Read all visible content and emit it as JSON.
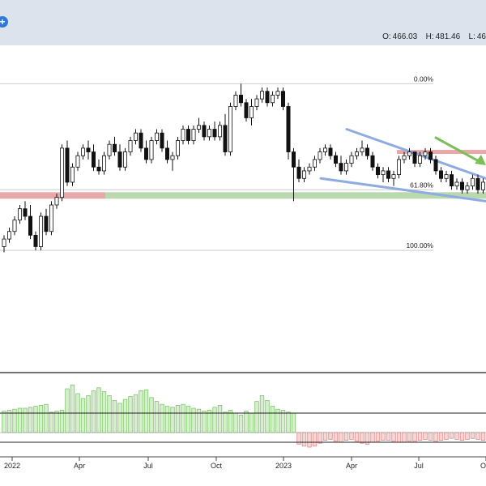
{
  "header": {
    "ohlc": [
      {
        "label": "O:",
        "value": "466.03"
      },
      {
        "label": "H:",
        "value": "481.46"
      },
      {
        "label": "L:",
        "value": "46"
      }
    ]
  },
  "colors": {
    "up": "#ffffff",
    "down": "#111111",
    "wick": "#111111",
    "fib_line": "#cccccc",
    "resistance": "#e9a8a8",
    "support": "#b9d8ae",
    "wedge": "#8eabe2",
    "arrow": "#7bbf5a",
    "hist_pos_fill": "#d6efcc",
    "hist_pos_stroke": "#7fc46b",
    "hist_neg_fill": "#f7d6d6",
    "hist_neg_stroke": "#e08c8c",
    "background": "#ffffff",
    "topbar": "#dde3ec"
  },
  "chart_data": {
    "type": "candlestick",
    "title": "",
    "ylim": [
      405,
      482
    ],
    "x_ticks": [
      "2022",
      "Apr",
      "Jul",
      "Oct",
      "2023",
      "Apr",
      "Jul",
      "O"
    ],
    "fib_levels": [
      {
        "label": "0.00%",
        "value": 474
      },
      {
        "label": "61.80%",
        "value": 446
      },
      {
        "label": "100.00%",
        "value": 430
      }
    ],
    "support_level": 444.5,
    "resistance_level": 456,
    "candles": [
      [
        431.0,
        434.0,
        429.5,
        433.0
      ],
      [
        433.0,
        436.0,
        432.0,
        435.0
      ],
      [
        435.0,
        439.0,
        434.0,
        438.0
      ],
      [
        438.0,
        442.0,
        437.0,
        441.0
      ],
      [
        441.0,
        443.0,
        438.0,
        439.0
      ],
      [
        439.0,
        442.0,
        433.0,
        434.0
      ],
      [
        434.0,
        435.0,
        430.0,
        431.0
      ],
      [
        431.0,
        440.0,
        430.0,
        439.0
      ],
      [
        439.0,
        441.0,
        434.0,
        435.0
      ],
      [
        435.0,
        443.0,
        434.0,
        442.0
      ],
      [
        442.0,
        445.0,
        441.0,
        444.0
      ],
      [
        444.0,
        458.0,
        443.0,
        457.0
      ],
      [
        457.0,
        459.0,
        447.0,
        448.0
      ],
      [
        448.0,
        453.0,
        447.0,
        452.0
      ],
      [
        452.0,
        456.0,
        451.0,
        455.0
      ],
      [
        455.0,
        458.0,
        454.0,
        457.0
      ],
      [
        457.0,
        459.0,
        454.0,
        456.0
      ],
      [
        456.0,
        458.0,
        451.0,
        452.0
      ],
      [
        452.0,
        454.0,
        450.0,
        451.0
      ],
      [
        451.0,
        456.0,
        450.0,
        455.0
      ],
      [
        455.0,
        459.0,
        454.0,
        458.0
      ],
      [
        458.0,
        460.0,
        455.0,
        456.0
      ],
      [
        456.0,
        458.0,
        451.0,
        452.0
      ],
      [
        452.0,
        457.0,
        451.0,
        456.0
      ],
      [
        456.0,
        460.0,
        455.0,
        459.0
      ],
      [
        459.0,
        462.0,
        458.0,
        461.0
      ],
      [
        461.0,
        462.0,
        456.0,
        457.0
      ],
      [
        457.0,
        459.0,
        453.0,
        454.0
      ],
      [
        454.0,
        460.0,
        453.0,
        459.0
      ],
      [
        459.0,
        462.0,
        458.0,
        461.0
      ],
      [
        461.0,
        462.0,
        456.0,
        457.0
      ],
      [
        457.0,
        459.0,
        453.0,
        454.0
      ],
      [
        454.0,
        456.0,
        451.0,
        455.0
      ],
      [
        455.0,
        460.0,
        454.0,
        459.0
      ],
      [
        459.0,
        463.0,
        458.0,
        462.0
      ],
      [
        462.0,
        463.0,
        458.0,
        459.0
      ],
      [
        459.0,
        463.0,
        458.0,
        462.0
      ],
      [
        462.0,
        465.0,
        461.0,
        463.0
      ],
      [
        463.0,
        464.0,
        459.0,
        460.0
      ],
      [
        460.0,
        463.0,
        459.0,
        462.0
      ],
      [
        462.0,
        464.0,
        459.0,
        460.0
      ],
      [
        460.0,
        464.0,
        459.0,
        463.0
      ],
      [
        463.0,
        466.0,
        455.0,
        456.0
      ],
      [
        456.0,
        469.0,
        455.0,
        468.0
      ],
      [
        468.0,
        472.0,
        467.0,
        471.0
      ],
      [
        471.0,
        474.0,
        468.0,
        469.0
      ],
      [
        469.0,
        470.0,
        464.0,
        465.0
      ],
      [
        465.0,
        470.0,
        463.0,
        468.0
      ],
      [
        468.0,
        471.0,
        467.0,
        470.0
      ],
      [
        470.0,
        473.0,
        469.0,
        472.0
      ],
      [
        472.0,
        473.0,
        468.0,
        469.0
      ],
      [
        469.0,
        472.0,
        468.0,
        471.0
      ],
      [
        471.0,
        473.0,
        470.0,
        472.0
      ],
      [
        472.0,
        473.0,
        467.0,
        468.0
      ],
      [
        468.0,
        469.0,
        454.0,
        456.0
      ],
      [
        456.0,
        457.0,
        443.0,
        452.0
      ],
      [
        452.0,
        454.0,
        448.0,
        449.0
      ],
      [
        449.0,
        452.0,
        448.0,
        451.0
      ],
      [
        451.0,
        453.0,
        450.0,
        452.0
      ],
      [
        452.0,
        455.0,
        451.0,
        454.0
      ],
      [
        454.0,
        457.0,
        453.0,
        456.0
      ],
      [
        456.0,
        458.0,
        455.0,
        457.0
      ],
      [
        457.0,
        458.0,
        454.0,
        455.0
      ],
      [
        455.0,
        456.0,
        452.0,
        453.0
      ],
      [
        453.0,
        455.0,
        450.0,
        451.0
      ],
      [
        451.0,
        454.0,
        450.0,
        453.0
      ],
      [
        453.0,
        456.0,
        452.0,
        455.0
      ],
      [
        455.0,
        457.0,
        454.0,
        456.0
      ],
      [
        456.0,
        459.0,
        455.0,
        457.0
      ],
      [
        457.0,
        458.0,
        454.0,
        455.0
      ],
      [
        455.0,
        456.0,
        451.0,
        452.0
      ],
      [
        452.0,
        453.0,
        449.0,
        450.0
      ],
      [
        450.0,
        452.0,
        448.0,
        451.0
      ],
      [
        451.0,
        452.0,
        448.0,
        449.0
      ],
      [
        449.0,
        451.0,
        447.0,
        450.0
      ],
      [
        450.0,
        455.0,
        449.0,
        454.0
      ],
      [
        454.0,
        456.0,
        453.0,
        455.0
      ],
      [
        455.0,
        457.0,
        454.0,
        456.0
      ],
      [
        456.0,
        456.0,
        452.0,
        453.0
      ],
      [
        453.0,
        456.0,
        452.0,
        455.0
      ],
      [
        455.0,
        457.0,
        454.0,
        456.0
      ],
      [
        456.0,
        457.0,
        453.0,
        454.0
      ],
      [
        454.0,
        455.0,
        450.0,
        451.0
      ],
      [
        451.0,
        452.0,
        448.0,
        449.0
      ],
      [
        449.0,
        451.0,
        448.0,
        450.0
      ],
      [
        450.0,
        451.0,
        446.0,
        447.0
      ],
      [
        447.0,
        449.0,
        446.0,
        448.0
      ],
      [
        448.0,
        449.0,
        445.0,
        446.0
      ],
      [
        446.0,
        448.0,
        445.0,
        447.0
      ],
      [
        447.0,
        450.0,
        446.0,
        449.0
      ],
      [
        449.0,
        450.0,
        445.0,
        446.0
      ],
      [
        446.0,
        449.0,
        445.0,
        448.0
      ]
    ],
    "histogram": [
      2.2,
      2.3,
      2.4,
      2.5,
      2.5,
      2.6,
      2.7,
      2.8,
      2.9,
      2.1,
      2.2,
      2.3,
      4.5,
      4.9,
      4.0,
      3.5,
      3.8,
      4.3,
      4.6,
      4.2,
      3.8,
      3.3,
      3.0,
      3.4,
      3.7,
      3.9,
      4.3,
      4.4,
      3.6,
      3.2,
      2.9,
      2.7,
      2.6,
      2.8,
      2.9,
      2.7,
      2.5,
      2.4,
      2.2,
      2.3,
      2.6,
      2.8,
      2.1,
      2.3,
      2.0,
      1.8,
      2.2,
      2.0,
      3.2,
      3.8,
      3.3,
      2.7,
      2.4,
      2.3,
      2.1,
      2.0,
      -1.2,
      -1.4,
      -1.5,
      -1.4,
      -1.1,
      -0.8,
      -0.7,
      -0.9,
      -1.0,
      -0.8,
      -0.7,
      -0.9,
      -1.1,
      -1.2,
      -1.0,
      -0.9,
      -0.8,
      -0.8,
      -0.9,
      -1.0,
      -1.0,
      -0.9,
      -0.9,
      -0.8,
      -0.7,
      -0.8,
      -0.9,
      -0.8,
      -0.7,
      -0.6,
      -0.7,
      -0.8,
      -0.7,
      -0.6,
      -0.7,
      -0.8
    ],
    "hist_ylim": [
      -2,
      6
    ]
  }
}
